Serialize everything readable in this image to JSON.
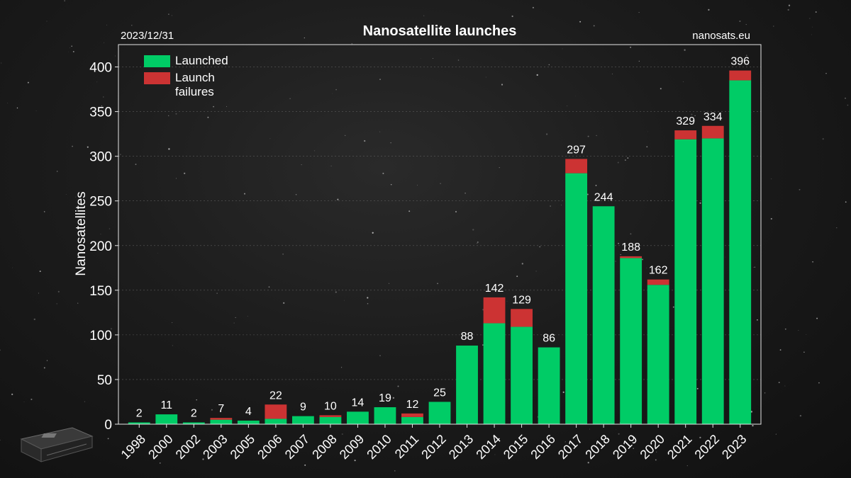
{
  "header": {
    "title": "Nanosatellite launches",
    "date": "2023/12/31",
    "source": "nanosats.eu"
  },
  "colors": {
    "launched": "#00cc66",
    "failures": "#cc3333",
    "axis": "#e6e6e6",
    "grid": "#5a5a5a"
  },
  "decoration": {
    "icon": "satellite-icon"
  },
  "chart_data": {
    "type": "bar",
    "stacked": true,
    "title": "Nanosatellite launches",
    "xlabel": "",
    "ylabel": "Nanosatellites",
    "ylim": [
      0,
      425
    ],
    "yticks": [
      0,
      50,
      100,
      150,
      200,
      250,
      300,
      350,
      400
    ],
    "grid": true,
    "legend_position": "top-left",
    "categories": [
      "1998",
      "2000",
      "2002",
      "2003",
      "2005",
      "2006",
      "2007",
      "2008",
      "2009",
      "2010",
      "2011",
      "2012",
      "2013",
      "2014",
      "2015",
      "2016",
      "2017",
      "2018",
      "2019",
      "2020",
      "2021",
      "2022",
      "2023"
    ],
    "series": [
      {
        "name": "Launched",
        "values": [
          2,
          11,
          2,
          5,
          4,
          6,
          9,
          8,
          14,
          19,
          8,
          25,
          88,
          113,
          109,
          86,
          281,
          244,
          186,
          156,
          319,
          320,
          385
        ]
      },
      {
        "name": "Launch failures",
        "values": [
          0,
          0,
          0,
          2,
          0,
          16,
          0,
          2,
          0,
          0,
          4,
          0,
          0,
          29,
          20,
          0,
          16,
          0,
          2,
          6,
          10,
          14,
          11
        ]
      }
    ],
    "totals": [
      2,
      11,
      2,
      7,
      4,
      22,
      9,
      10,
      14,
      19,
      12,
      25,
      88,
      142,
      129,
      86,
      297,
      244,
      188,
      162,
      329,
      334,
      396
    ]
  }
}
